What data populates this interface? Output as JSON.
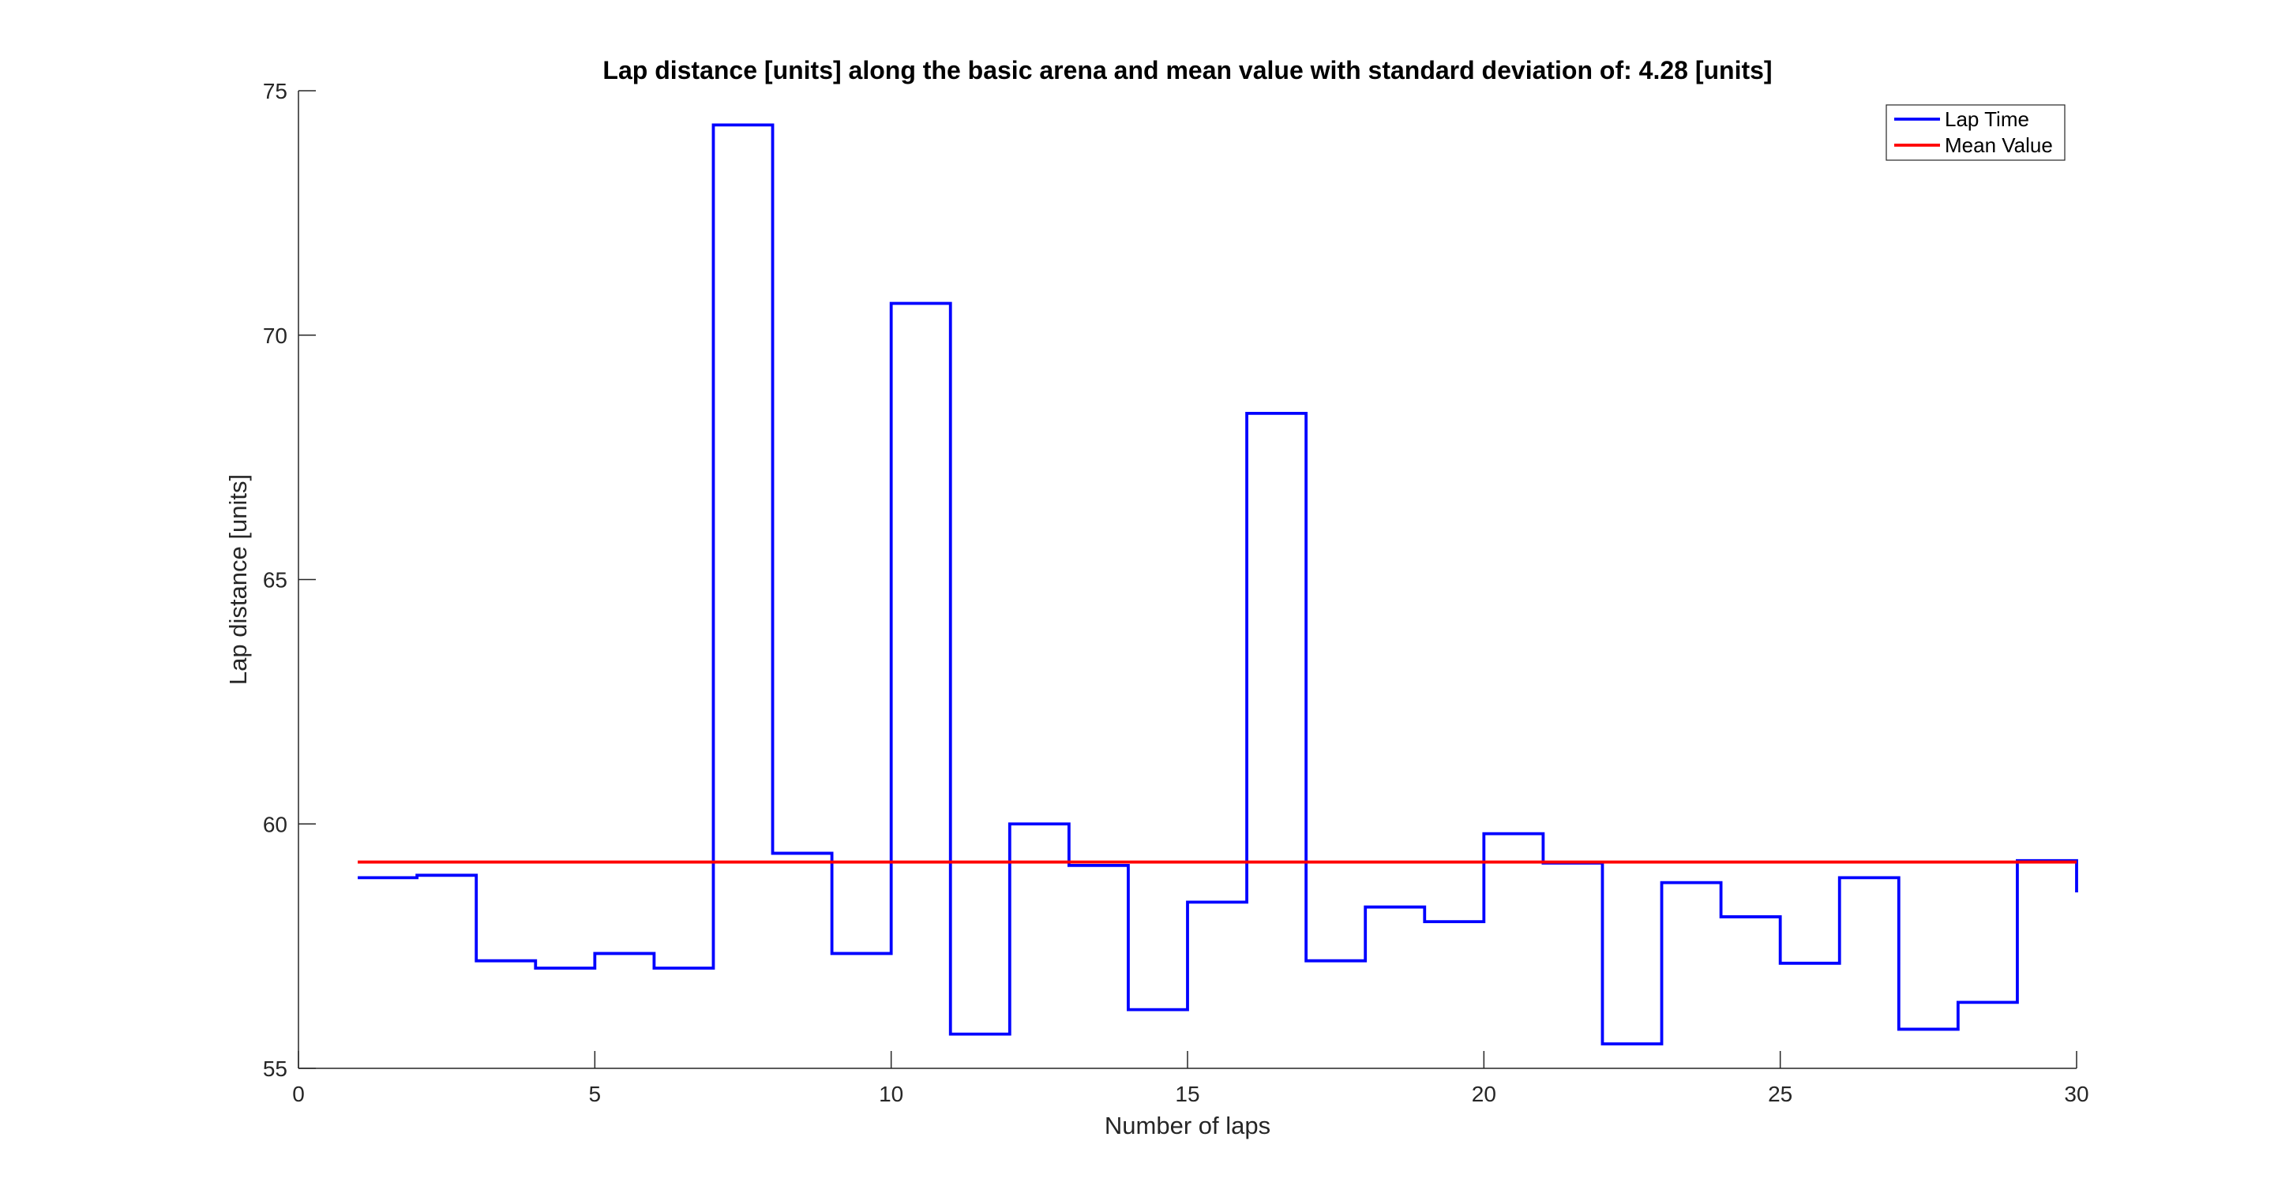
{
  "chart_data": {
    "type": "line",
    "title": "Lap distance [units] along the basic arena and mean value with standard deviation of: 4.28 [units]",
    "xlabel": "Number of laps",
    "ylabel": "Lap distance [units]",
    "xlim": [
      0,
      30
    ],
    "ylim": [
      55,
      75
    ],
    "xticks": [
      0,
      5,
      10,
      15,
      20,
      25,
      30
    ],
    "yticks": [
      55,
      60,
      65,
      70,
      75
    ],
    "grid": false,
    "legend_position": "top-right",
    "series": [
      {
        "name": "Lap Time",
        "color": "#0000ff",
        "style": "stairs",
        "x": [
          1,
          2,
          3,
          4,
          5,
          6,
          7,
          8,
          9,
          10,
          11,
          12,
          13,
          14,
          15,
          16,
          17,
          18,
          19,
          20,
          21,
          22,
          23,
          24,
          25,
          26,
          27,
          28,
          29,
          30
        ],
        "values": [
          58.9,
          58.95,
          57.2,
          57.05,
          57.35,
          57.05,
          74.3,
          59.4,
          57.35,
          70.65,
          55.7,
          60.0,
          59.15,
          56.2,
          58.4,
          68.4,
          57.2,
          58.3,
          58.0,
          59.8,
          59.2,
          55.5,
          58.8,
          58.1,
          57.15,
          58.9,
          55.8,
          56.35,
          59.25,
          58.6
        ]
      },
      {
        "name": "Mean Value",
        "color": "#ff0000",
        "style": "line",
        "x": [
          1,
          30
        ],
        "values": [
          59.22,
          59.22
        ]
      }
    ]
  }
}
